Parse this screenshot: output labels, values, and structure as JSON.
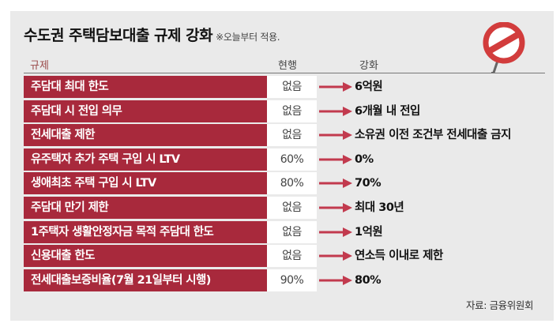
{
  "title": "수도권 주택담보대출 규제 강화",
  "title_note": "※오늘부터 적용.",
  "headers": {
    "regulation": "규제",
    "current": "현행",
    "strengthened": "강화"
  },
  "rows": [
    {
      "regulation": "주담대 최대 한도",
      "current": "없음",
      "strengthened": "6억원"
    },
    {
      "regulation": "주담대 시 전입 의무",
      "current": "없음",
      "strengthened": "6개월 내 전입"
    },
    {
      "regulation": "전세대출 제한",
      "current": "없음",
      "strengthened": "소유권 이전 조건부 전세대출 금지"
    },
    {
      "regulation": "유주택자 추가 주택 구입 시 LTV",
      "current": "60%",
      "strengthened": "0%"
    },
    {
      "regulation": "생애최초 주택 구입 시 LTV",
      "current": "80%",
      "strengthened": "70%"
    },
    {
      "regulation": "주담대 만기 제한",
      "current": "없음",
      "strengthened": "최대 30년"
    },
    {
      "regulation": "1주택자 생활안정자금 목적 주담대 한도",
      "current": "없음",
      "strengthened": "1억원"
    },
    {
      "regulation": "신용대출 한도",
      "current": "없음",
      "strengthened": "연소득 이내로 제한"
    },
    {
      "regulation": "전세대출보증비율(7월 21일부터 시행)",
      "current": "90%",
      "strengthened": "80%"
    }
  ],
  "source": "자료: 금융위원회",
  "icons": {
    "sign": "prohibition-sign-icon",
    "arrow": "right-arrow-icon"
  },
  "colors": {
    "regulation_bg": "#a8293c",
    "arrow": "#c23a4e",
    "card_bg": "#eaeaea",
    "sign_ring": "#d23c3c"
  }
}
